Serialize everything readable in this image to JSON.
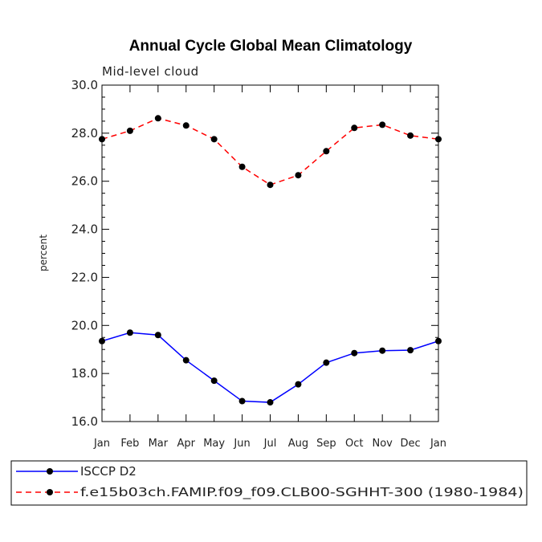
{
  "chart_data": {
    "type": "line",
    "title": "Annual Cycle Global Mean Climatology",
    "subtitle": "Mid-level cloud",
    "xlabel": "",
    "ylabel": "percent",
    "categories": [
      "Jan",
      "Feb",
      "Mar",
      "Apr",
      "May",
      "Jun",
      "Jul",
      "Aug",
      "Sep",
      "Oct",
      "Nov",
      "Dec",
      "Jan"
    ],
    "ylim": [
      16.0,
      30.0
    ],
    "yticks": [
      "16.0",
      "18.0",
      "20.0",
      "22.0",
      "24.0",
      "26.0",
      "28.0",
      "30.0"
    ],
    "legend_position": "bottom-left",
    "series": [
      {
        "name": "ISCCP D2",
        "color": "#0000ff",
        "dash": "solid",
        "values": [
          19.35,
          19.7,
          19.6,
          18.55,
          17.7,
          16.85,
          16.8,
          17.55,
          18.45,
          18.85,
          18.95,
          18.97,
          19.35
        ]
      },
      {
        "name": "f.e15b03ch.FAMIP.f09_f09.CLB00-SGHHT-300 (1980-1984)",
        "color": "#ff0000",
        "dash": "dashed",
        "values": [
          27.75,
          28.1,
          28.62,
          28.32,
          27.75,
          26.6,
          25.85,
          26.25,
          27.25,
          28.22,
          28.35,
          27.9,
          27.75
        ]
      }
    ]
  }
}
